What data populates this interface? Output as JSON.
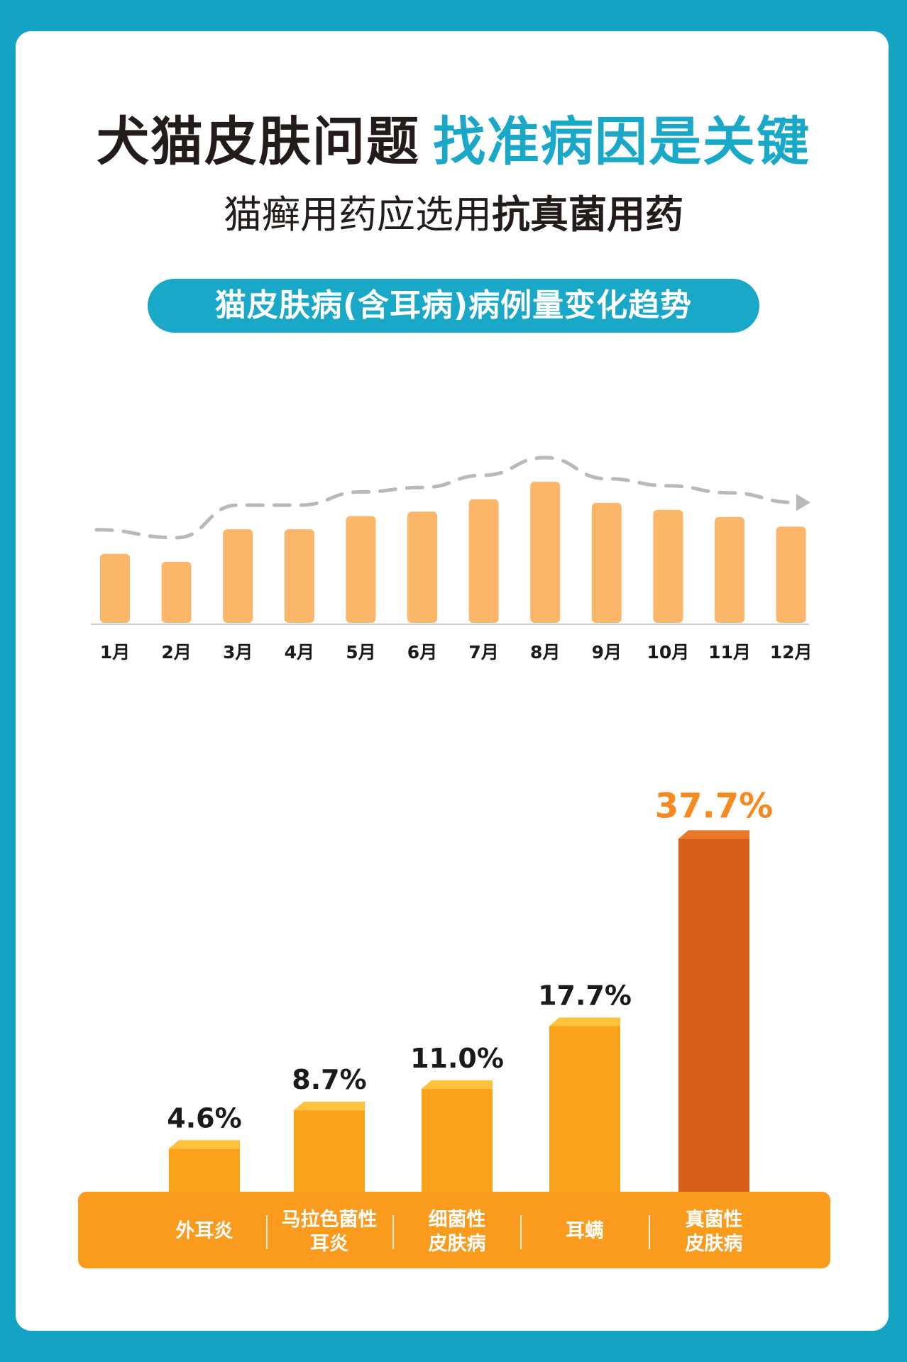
{
  "header": {
    "title_dark": "犬猫皮肤问题",
    "title_accent": "找准病因是关键",
    "subtitle_normal": "猫癣用药应选用",
    "subtitle_bold": "抗真菌用药",
    "section_title": "猫皮肤病(含耳病)病例量变化趋势"
  },
  "colors": {
    "frame": "#13a3c4",
    "accent": "#1aa8c8",
    "monthly_bar": "#fbb66a",
    "trend_line": "#b9b9b9",
    "category_bar": "#fba11a",
    "highlight_bar": "#d75f18",
    "highlight_text": "#f6891f",
    "base_band": "#fb9b1e"
  },
  "chart_data": [
    {
      "type": "bar",
      "title": "猫皮肤病(含耳病)病例量变化趋势",
      "categories": [
        "1月",
        "2月",
        "3月",
        "4月",
        "5月",
        "6月",
        "7月",
        "8月",
        "9月",
        "10月",
        "11月",
        "12月"
      ],
      "values": [
        80,
        71,
        108,
        108,
        123,
        128,
        142,
        162,
        138,
        130,
        122,
        111
      ],
      "trend_line": true,
      "axis_values_shown": false
    },
    {
      "type": "bar",
      "categories": [
        [
          "外耳炎"
        ],
        [
          "马拉色菌性",
          "耳炎"
        ],
        [
          "细菌性",
          "皮肤病"
        ],
        [
          "耳螨"
        ],
        [
          "真菌性",
          "皮肤病"
        ]
      ],
      "values": [
        4.6,
        8.7,
        11.0,
        17.7,
        37.7
      ],
      "value_labels": [
        "4.6%",
        "8.7%",
        "11.0%",
        "17.7%",
        "37.7%"
      ],
      "highlight_index": 4
    }
  ]
}
